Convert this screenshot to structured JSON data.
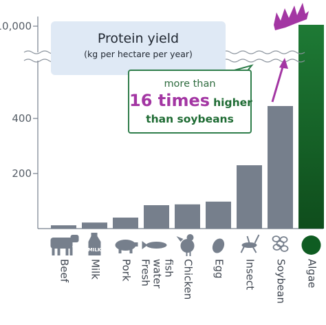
{
  "chart_data": {
    "type": "bar",
    "title": "Protein yield",
    "subtitle": "(kg per hectare per year)",
    "categories": [
      "Beef",
      "Milk",
      "Pork",
      "Fresh water fish",
      "Chicken",
      "Egg",
      "Insect",
      "Soybean",
      "Algae"
    ],
    "category_lines": [
      [
        "Beef"
      ],
      [
        "Milk"
      ],
      [
        "Pork"
      ],
      [
        "Fresh",
        "water",
        "fish"
      ],
      [
        "Chicken"
      ],
      [
        "Egg"
      ],
      [
        "Insect"
      ],
      [
        "Soybean"
      ],
      [
        "Algae"
      ]
    ],
    "values": [
      12,
      22,
      40,
      85,
      88,
      98,
      230,
      445,
      10000
    ],
    "y_ticks": [
      200,
      400,
      10000
    ],
    "y_tick_labels": [
      "200",
      "400",
      "10,000"
    ],
    "y_axis_break": true,
    "grid": false,
    "highlight_category": "Algae",
    "annotation": {
      "line1": "more than",
      "highlight": "16 times",
      "line2_rest": "higher",
      "line3": "than soybeans"
    }
  },
  "colors": {
    "bar": "#767f8c",
    "algae_top": "#1e7a35",
    "algae_bottom": "#0f4d1c",
    "algae_label": "#1a7a3c",
    "highlight": "#a336a3",
    "callout_text": "#1e6b33",
    "icon": "#767f8c",
    "title_box": "#dfe9f5"
  },
  "icons": [
    "cow-icon",
    "milk-carton-icon",
    "pig-icon",
    "fish-icon",
    "chicken-icon",
    "egg-icon",
    "insect-icon",
    "soybean-icon",
    "algae-circle-icon"
  ]
}
